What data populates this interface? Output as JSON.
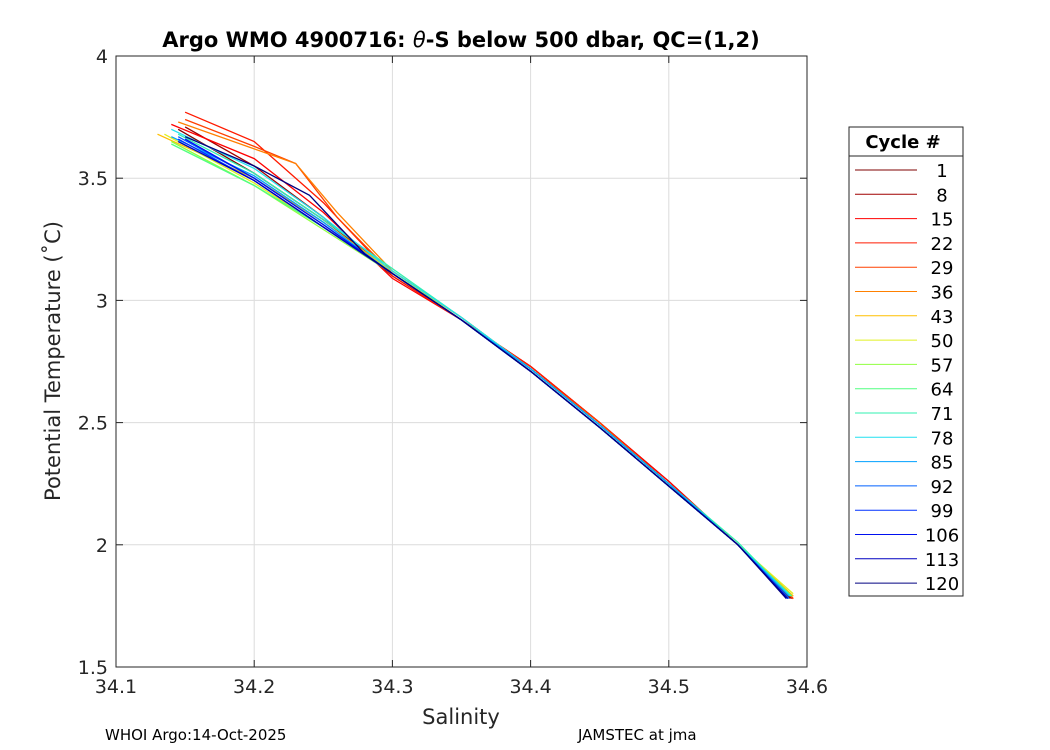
{
  "chart_data": {
    "type": "line",
    "title_prefix": "Argo WMO 4900716: ",
    "title_theta": "θ",
    "title_suffix": "-S below 500 dbar,  QC=(1,2)",
    "xlabel": "Salinity",
    "ylabel": "Potential Temperature (˚C)",
    "xlim": [
      34.1,
      34.6
    ],
    "ylim": [
      1.5,
      4
    ],
    "xticks": [
      "34.1",
      "34.2",
      "34.3",
      "34.4",
      "34.5",
      "34.6"
    ],
    "yticks": [
      "1.5",
      "2",
      "2.5",
      "3",
      "3.5",
      "4"
    ],
    "grid": true,
    "legend": {
      "title": "Cycle #",
      "placement": "outside-right"
    },
    "series": [
      {
        "name": "1",
        "color": "#7f0000",
        "s": [
          34.145,
          34.2,
          34.25,
          34.3,
          34.35,
          34.4,
          34.45,
          34.5,
          34.55,
          34.588
        ],
        "t": [
          3.7,
          3.52,
          3.33,
          3.12,
          2.93,
          2.72,
          2.49,
          2.25,
          2.0,
          1.78
        ]
      },
      {
        "name": "8",
        "color": "#a00000",
        "s": [
          34.15,
          34.2,
          34.25,
          34.3,
          34.35,
          34.4,
          34.45,
          34.5,
          34.55,
          34.589
        ],
        "t": [
          3.71,
          3.55,
          3.34,
          3.1,
          2.92,
          2.73,
          2.5,
          2.26,
          2.0,
          1.78
        ]
      },
      {
        "name": "15",
        "color": "#ff0000",
        "s": [
          34.14,
          34.2,
          34.25,
          34.3,
          34.35,
          34.4,
          34.45,
          34.5,
          34.55,
          34.59
        ],
        "t": [
          3.72,
          3.58,
          3.36,
          3.09,
          2.92,
          2.73,
          2.5,
          2.26,
          2.0,
          1.78
        ]
      },
      {
        "name": "22",
        "color": "#ff1a00",
        "s": [
          34.15,
          34.2,
          34.25,
          34.3,
          34.35,
          34.4,
          34.45,
          34.5,
          34.55,
          34.59
        ],
        "t": [
          3.77,
          3.65,
          3.4,
          3.1,
          2.92,
          2.73,
          2.5,
          2.25,
          2.0,
          1.78
        ]
      },
      {
        "name": "29",
        "color": "#ff4000",
        "s": [
          34.15,
          34.2,
          34.23,
          34.26,
          34.3,
          34.35,
          34.4,
          34.45,
          34.5,
          34.55,
          34.59
        ],
        "t": [
          3.74,
          3.63,
          3.56,
          3.34,
          3.11,
          2.92,
          2.72,
          2.5,
          2.25,
          2.0,
          1.78
        ]
      },
      {
        "name": "36",
        "color": "#ff8000",
        "s": [
          34.145,
          34.2,
          34.23,
          34.26,
          34.3,
          34.35,
          34.4,
          34.45,
          34.5,
          34.55,
          34.59
        ],
        "t": [
          3.73,
          3.62,
          3.56,
          3.36,
          3.12,
          2.93,
          2.72,
          2.49,
          2.25,
          2.0,
          1.79
        ]
      },
      {
        "name": "43",
        "color": "#ffbf00",
        "s": [
          34.13,
          34.2,
          34.25,
          34.3,
          34.35,
          34.4,
          34.45,
          34.5,
          34.55,
          34.59
        ],
        "t": [
          3.68,
          3.5,
          3.32,
          3.12,
          2.93,
          2.72,
          2.49,
          2.25,
          2.0,
          1.79
        ]
      },
      {
        "name": "50",
        "color": "#e0f020",
        "s": [
          34.135,
          34.2,
          34.25,
          34.3,
          34.35,
          34.4,
          34.45,
          34.5,
          34.55,
          34.59
        ],
        "t": [
          3.68,
          3.48,
          3.3,
          3.12,
          2.92,
          2.72,
          2.49,
          2.25,
          2.0,
          1.8
        ]
      },
      {
        "name": "57",
        "color": "#90ff40",
        "s": [
          34.14,
          34.2,
          34.25,
          34.3,
          34.35,
          34.4,
          34.45,
          34.5,
          34.55,
          34.589
        ],
        "t": [
          3.65,
          3.47,
          3.29,
          3.11,
          2.92,
          2.71,
          2.48,
          2.24,
          2.0,
          1.79
        ]
      },
      {
        "name": "64",
        "color": "#50ff80",
        "s": [
          34.14,
          34.2,
          34.25,
          34.3,
          34.35,
          34.4,
          34.45,
          34.5,
          34.55,
          34.589
        ],
        "t": [
          3.64,
          3.47,
          3.3,
          3.11,
          2.92,
          2.71,
          2.48,
          2.24,
          2.0,
          1.79
        ]
      },
      {
        "name": "71",
        "color": "#30f0b0",
        "s": [
          34.145,
          34.2,
          34.25,
          34.3,
          34.35,
          34.4,
          34.45,
          34.5,
          34.55,
          34.588
        ],
        "t": [
          3.68,
          3.52,
          3.33,
          3.13,
          2.93,
          2.72,
          2.49,
          2.25,
          2.01,
          1.79
        ]
      },
      {
        "name": "78",
        "color": "#20e0f0",
        "s": [
          34.14,
          34.2,
          34.25,
          34.3,
          34.35,
          34.4,
          34.45,
          34.5,
          34.55,
          34.588
        ],
        "t": [
          3.7,
          3.54,
          3.34,
          3.12,
          2.93,
          2.72,
          2.49,
          2.25,
          2.0,
          1.79
        ]
      },
      {
        "name": "85",
        "color": "#00a0ff",
        "s": [
          34.14,
          34.2,
          34.25,
          34.3,
          34.35,
          34.4,
          34.45,
          34.5,
          34.55,
          34.587
        ],
        "t": [
          3.67,
          3.51,
          3.32,
          3.11,
          2.92,
          2.72,
          2.49,
          2.25,
          2.0,
          1.79
        ]
      },
      {
        "name": "92",
        "color": "#0060ff",
        "s": [
          34.145,
          34.2,
          34.25,
          34.3,
          34.35,
          34.4,
          34.45,
          34.5,
          34.55,
          34.587
        ],
        "t": [
          3.67,
          3.5,
          3.31,
          3.11,
          2.92,
          2.71,
          2.48,
          2.24,
          2.0,
          1.78
        ]
      },
      {
        "name": "99",
        "color": "#0030ff",
        "s": [
          34.145,
          34.2,
          34.25,
          34.3,
          34.35,
          34.4,
          34.45,
          34.5,
          34.55,
          34.586
        ],
        "t": [
          3.66,
          3.49,
          3.3,
          3.11,
          2.92,
          2.71,
          2.48,
          2.24,
          2.0,
          1.78
        ]
      },
      {
        "name": "106",
        "color": "#0010f0",
        "s": [
          34.15,
          34.2,
          34.25,
          34.3,
          34.35,
          34.4,
          34.45,
          34.5,
          34.55,
          34.586
        ],
        "t": [
          3.66,
          3.5,
          3.31,
          3.11,
          2.92,
          2.71,
          2.48,
          2.24,
          2.0,
          1.78
        ]
      },
      {
        "name": "113",
        "color": "#0000c0",
        "s": [
          34.145,
          34.2,
          34.25,
          34.3,
          34.35,
          34.4,
          34.45,
          34.5,
          34.55,
          34.586
        ],
        "t": [
          3.65,
          3.49,
          3.3,
          3.11,
          2.92,
          2.71,
          2.48,
          2.24,
          2.0,
          1.78
        ]
      },
      {
        "name": "120",
        "color": "#000080",
        "s": [
          34.15,
          34.2,
          34.24,
          34.28,
          34.3,
          34.35,
          34.4,
          34.45,
          34.5,
          34.55,
          34.585
        ],
        "t": [
          3.67,
          3.55,
          3.43,
          3.19,
          3.11,
          2.92,
          2.71,
          2.48,
          2.24,
          2.0,
          1.78
        ]
      }
    ]
  },
  "footer": {
    "left": "WHOI Argo:14-Oct-2025",
    "right": "JAMSTEC at jma"
  }
}
